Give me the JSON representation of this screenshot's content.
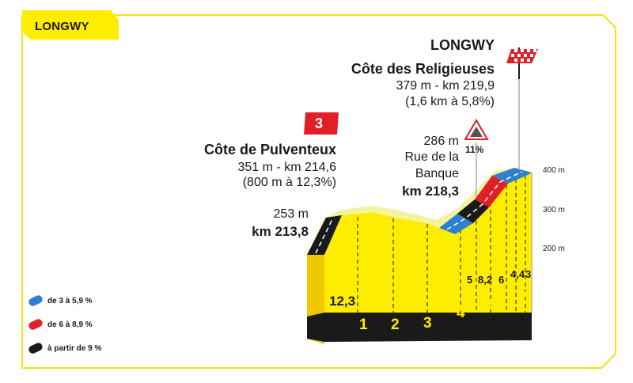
{
  "tab": {
    "title": "LONGWY"
  },
  "finish": {
    "town": "LONGWY",
    "climb": "Côte des Religieuses",
    "altitude_km": "379 m - km 219,9",
    "stats": "(1,6 km à 5,8%)"
  },
  "climb1": {
    "category": "3",
    "name": "Côte de Pulventeux",
    "altitude_km": "351 m - km 214,6",
    "stats": "(800 m à 12,3%)"
  },
  "start_point": {
    "altitude": "253 m",
    "km": "km 213,8"
  },
  "steep_point": {
    "altitude": "286 m",
    "grade": "11%",
    "street_line1": "Rue de la",
    "street_line2": "Banque",
    "km": "km 218,3"
  },
  "y_axis": [
    "400 m",
    "300 m",
    "200 m"
  ],
  "km_markers": [
    "1",
    "2",
    "3",
    "4",
    "5",
    "6"
  ],
  "segment_grades": [
    "12,3",
    "5",
    "8,2",
    "6",
    "4,4",
    "3"
  ],
  "legend": [
    {
      "label": "de 3 à 5,9 %",
      "color": "#2f7fd0"
    },
    {
      "label": "de 6 à 8,9 %",
      "color": "#e21f26"
    },
    {
      "label": "à partir de 9 %",
      "color": "#1a1a1a"
    }
  ],
  "colors": {
    "yellow": "#ffed00",
    "black": "#1a1a1a",
    "red": "#e21f26",
    "blue": "#2f7fd0"
  }
}
